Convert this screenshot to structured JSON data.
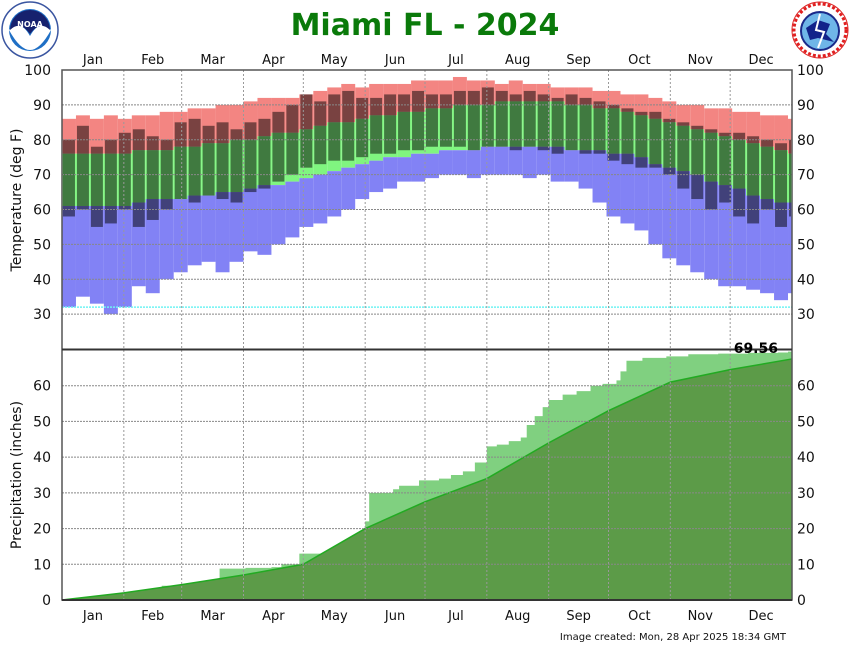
{
  "header": {
    "title": "Miami FL - 2024",
    "left_logo": "NOAA",
    "right_logo": "NATIONAL WEATHER SERVICE"
  },
  "footer": {
    "created": "Image created: Mon, 28 Apr 2025 18:34 GMT"
  },
  "colors": {
    "record_high_band": "#f38582",
    "normal_band": "#80f580",
    "record_low_band": "#8282f5",
    "observed_overlay": "rgba(0,0,0,0.5)",
    "freeze_line": "#6ff3f3",
    "precip_observed": "#80d080",
    "precip_normal": "#5c9b48",
    "precip_normal_line": "#22aa22",
    "precip_deficit": "#a89a88",
    "title": "#0a7a0a"
  },
  "chart_data": [
    {
      "type": "bar",
      "ylabel": "Temperature (deg F)",
      "ylim": [
        20,
        100
      ],
      "yticks": [
        "30",
        "40",
        "50",
        "60",
        "70",
        "80",
        "90",
        "100"
      ],
      "months": [
        "Jan",
        "Feb",
        "Mar",
        "Apr",
        "May",
        "Jun",
        "Jul",
        "Aug",
        "Sep",
        "Oct",
        "Nov",
        "Dec"
      ],
      "grid": true,
      "freeze_line": 32,
      "week_start": [
        "01-01",
        "01-08",
        "01-15",
        "01-22",
        "01-29",
        "02-05",
        "02-12",
        "02-19",
        "02-26",
        "03-04",
        "03-11",
        "03-18",
        "03-25",
        "04-01",
        "04-08",
        "04-15",
        "04-22",
        "04-29",
        "05-06",
        "05-13",
        "05-20",
        "05-27",
        "06-03",
        "06-10",
        "06-17",
        "06-24",
        "07-01",
        "07-08",
        "07-15",
        "07-22",
        "07-29",
        "08-05",
        "08-12",
        "08-19",
        "08-26",
        "09-02",
        "09-09",
        "09-16",
        "09-23",
        "09-30",
        "10-07",
        "10-14",
        "10-21",
        "10-28",
        "11-04",
        "11-11",
        "11-18",
        "11-25",
        "12-02",
        "12-09",
        "12-16",
        "12-23",
        "12-30"
      ],
      "record_high": [
        86,
        87,
        86,
        87,
        86,
        87,
        87,
        88,
        88,
        89,
        89,
        90,
        90,
        91,
        92,
        92,
        92,
        93,
        94,
        95,
        96,
        95,
        96,
        96,
        96,
        97,
        97,
        97,
        98,
        97,
        97,
        96,
        97,
        96,
        96,
        95,
        95,
        95,
        94,
        94,
        93,
        93,
        92,
        91,
        90,
        90,
        89,
        89,
        88,
        88,
        87,
        87,
        86
      ],
      "normal_high": [
        76,
        76,
        76,
        76,
        76,
        77,
        77,
        77,
        78,
        78,
        79,
        79,
        80,
        80,
        81,
        82,
        82,
        83,
        84,
        85,
        85,
        86,
        87,
        87,
        88,
        88,
        89,
        89,
        90,
        90,
        90,
        91,
        91,
        91,
        91,
        91,
        90,
        90,
        89,
        89,
        88,
        87,
        86,
        85,
        84,
        83,
        82,
        81,
        80,
        79,
        78,
        77,
        76
      ],
      "normal_low": [
        61,
        61,
        61,
        61,
        61,
        62,
        63,
        63,
        63,
        64,
        64,
        65,
        65,
        66,
        67,
        67,
        68,
        69,
        70,
        71,
        72,
        73,
        74,
        75,
        75,
        76,
        76,
        77,
        77,
        77,
        78,
        78,
        78,
        78,
        78,
        78,
        77,
        77,
        77,
        76,
        76,
        75,
        73,
        72,
        71,
        70,
        68,
        67,
        66,
        64,
        63,
        62,
        62
      ],
      "record_low": [
        32,
        35,
        33,
        30,
        32,
        38,
        36,
        40,
        42,
        44,
        45,
        42,
        45,
        48,
        47,
        50,
        52,
        55,
        56,
        58,
        60,
        63,
        65,
        66,
        68,
        68,
        69,
        70,
        70,
        69,
        70,
        70,
        70,
        69,
        70,
        68,
        68,
        66,
        62,
        58,
        56,
        54,
        50,
        46,
        44,
        42,
        40,
        38,
        38,
        37,
        36,
        34,
        36
      ],
      "observed_high": [
        80,
        84,
        78,
        80,
        82,
        83,
        81,
        80,
        85,
        86,
        84,
        85,
        83,
        85,
        86,
        88,
        90,
        93,
        91,
        93,
        94,
        92,
        92,
        93,
        93,
        94,
        93,
        93,
        94,
        94,
        95,
        94,
        93,
        94,
        93,
        92,
        93,
        92,
        91,
        90,
        89,
        88,
        88,
        86,
        85,
        84,
        83,
        82,
        82,
        81,
        80,
        79,
        80
      ],
      "observed_low": [
        58,
        60,
        55,
        56,
        60,
        55,
        57,
        60,
        63,
        62,
        64,
        63,
        62,
        65,
        66,
        68,
        70,
        72,
        73,
        74,
        74,
        75,
        76,
        76,
        77,
        77,
        78,
        78,
        78,
        77,
        78,
        78,
        77,
        78,
        77,
        76,
        77,
        76,
        76,
        74,
        73,
        72,
        72,
        70,
        66,
        63,
        60,
        62,
        58,
        56,
        60,
        55,
        58
      ]
    },
    {
      "type": "area",
      "ylabel": "Precipitation (inches)",
      "ylim": [
        0,
        70
      ],
      "yticks": [
        "0",
        "10",
        "20",
        "30",
        "40",
        "50",
        "60"
      ],
      "months": [
        "Jan",
        "Feb",
        "Mar",
        "Apr",
        "May",
        "Jun",
        "Jul",
        "Aug",
        "Sep",
        "Oct",
        "Nov",
        "Dec"
      ],
      "grid": true,
      "total_label": "69.56",
      "observed_cumulative": [
        [
          "01-01",
          0
        ],
        [
          "01-10",
          0.6
        ],
        [
          "01-20",
          1.0
        ],
        [
          "01-28",
          1.3
        ],
        [
          "02-03",
          1.6
        ],
        [
          "02-10",
          2.4
        ],
        [
          "02-18",
          3.2
        ],
        [
          "02-20",
          4.0
        ],
        [
          "03-05",
          4.6
        ],
        [
          "03-12",
          5.2
        ],
        [
          "03-20",
          8.8
        ],
        [
          "04-02",
          9.0
        ],
        [
          "04-15",
          9.2
        ],
        [
          "04-20",
          10.0
        ],
        [
          "04-29",
          13.0
        ],
        [
          "05-10",
          13.0
        ],
        [
          "05-18",
          13.8
        ],
        [
          "05-23",
          16.0
        ],
        [
          "05-30",
          19.0
        ],
        [
          "06-01",
          22.0
        ],
        [
          "06-03",
          30.0
        ],
        [
          "06-15",
          31.0
        ],
        [
          "06-18",
          32.0
        ],
        [
          "06-28",
          33.5
        ],
        [
          "07-08",
          34.0
        ],
        [
          "07-14",
          35.0
        ],
        [
          "07-20",
          36.0
        ],
        [
          "07-26",
          38.5
        ],
        [
          "08-01",
          43.0
        ],
        [
          "08-06",
          43.5
        ],
        [
          "08-12",
          44.5
        ],
        [
          "08-18",
          45.5
        ],
        [
          "08-21",
          49.0
        ],
        [
          "08-25",
          51.5
        ],
        [
          "08-29",
          54.0
        ],
        [
          "09-01",
          56.0
        ],
        [
          "09-08",
          57.5
        ],
        [
          "09-15",
          58.5
        ],
        [
          "09-22",
          60.0
        ],
        [
          "09-28",
          60.5
        ],
        [
          "10-05",
          61.5
        ],
        [
          "10-07",
          64.0
        ],
        [
          "10-10",
          67.0
        ],
        [
          "10-18",
          67.8
        ],
        [
          "10-30",
          68.2
        ],
        [
          "11-10",
          68.8
        ],
        [
          "11-25",
          69.0
        ],
        [
          "12-10",
          69.2
        ],
        [
          "12-25",
          69.3
        ],
        [
          "12-30",
          69.56
        ]
      ],
      "normal_cumulative": [
        [
          "01-01",
          0
        ],
        [
          "02-01",
          2.0
        ],
        [
          "03-01",
          4.3
        ],
        [
          "04-01",
          7.0
        ],
        [
          "05-01",
          10.0
        ],
        [
          "06-01",
          20.0
        ],
        [
          "07-01",
          27.5
        ],
        [
          "08-01",
          34.0
        ],
        [
          "09-01",
          44.0
        ],
        [
          "10-01",
          53.0
        ],
        [
          "11-01",
          61.0
        ],
        [
          "12-01",
          64.5
        ],
        [
          "12-31",
          67.5
        ]
      ]
    }
  ]
}
